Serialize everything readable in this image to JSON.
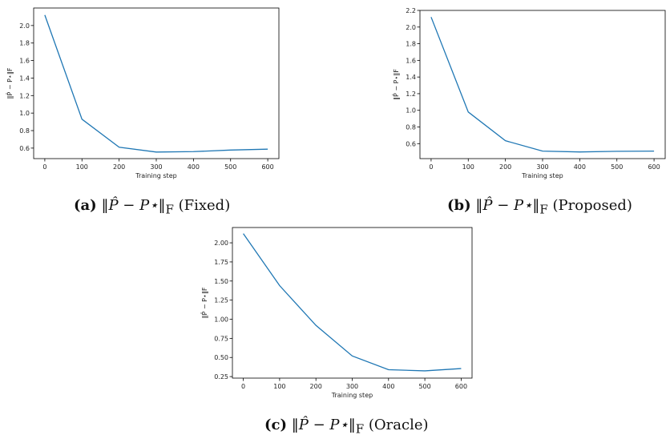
{
  "chart_data": [
    {
      "type": "line",
      "id": "a",
      "title": "",
      "xlabel": "Training step",
      "ylabel": "‖P̂ − P⋆‖F",
      "x": [
        0,
        100,
        200,
        300,
        400,
        500,
        600
      ],
      "xticks": [
        "0",
        "100",
        "200",
        "300",
        "400",
        "500",
        "600"
      ],
      "yticks": [
        "0.6",
        "0.8",
        "1.0",
        "1.2",
        "1.4",
        "1.6",
        "1.8",
        "2.0"
      ],
      "ytick_values": [
        0.6,
        0.8,
        1.0,
        1.2,
        1.4,
        1.6,
        1.8,
        2.0
      ],
      "xlim": [
        -30,
        630
      ],
      "ylim": [
        0.48,
        2.2
      ],
      "series": [
        {
          "values": [
            2.12,
            0.93,
            0.61,
            0.555,
            0.56,
            0.578,
            0.588
          ],
          "color": "#1f77b4"
        }
      ],
      "grid": false,
      "caption": {
        "tag": "(a)",
        "math": "‖P̂ − P⋆‖",
        "sub": "F",
        "label": "(Fixed)"
      }
    },
    {
      "type": "line",
      "id": "b",
      "title": "",
      "xlabel": "Training step",
      "ylabel": "‖P̂ − P⋆‖F",
      "x": [
        0,
        100,
        200,
        300,
        400,
        500,
        600
      ],
      "xticks": [
        "0",
        "100",
        "200",
        "300",
        "400",
        "500",
        "600"
      ],
      "yticks": [
        "0.6",
        "0.8",
        "1.0",
        "1.2",
        "1.4",
        "1.6",
        "1.8",
        "2.0",
        "2.2"
      ],
      "ytick_values": [
        0.6,
        0.8,
        1.0,
        1.2,
        1.4,
        1.6,
        1.8,
        2.0,
        2.2
      ],
      "xlim": [
        -30,
        630
      ],
      "ylim": [
        0.42,
        2.2
      ],
      "series": [
        {
          "values": [
            2.12,
            0.98,
            0.635,
            0.51,
            0.5,
            0.508,
            0.51
          ],
          "color": "#1f77b4"
        }
      ],
      "grid": false,
      "caption": {
        "tag": "(b)",
        "math": "‖P̂ − P⋆‖",
        "sub": "F",
        "label": "(Proposed)"
      }
    },
    {
      "type": "line",
      "id": "c",
      "title": "",
      "xlabel": "Training step",
      "ylabel": "‖P̂ − P⋆‖F",
      "x": [
        0,
        100,
        200,
        300,
        400,
        500,
        600
      ],
      "xticks": [
        "0",
        "100",
        "200",
        "300",
        "400",
        "500",
        "600"
      ],
      "yticks": [
        "0.25",
        "0.50",
        "0.75",
        "1.00",
        "1.25",
        "1.50",
        "1.75",
        "2.00"
      ],
      "ytick_values": [
        0.25,
        0.5,
        0.75,
        1.0,
        1.25,
        1.5,
        1.75,
        2.0
      ],
      "xlim": [
        -30,
        630
      ],
      "ylim": [
        0.23,
        2.2
      ],
      "series": [
        {
          "values": [
            2.12,
            1.44,
            0.92,
            0.52,
            0.34,
            0.325,
            0.355
          ],
          "color": "#1f77b4"
        }
      ],
      "grid": false,
      "caption": {
        "tag": "(c)",
        "math": "‖P̂ − P⋆‖",
        "sub": "F",
        "label": "(Oracle)"
      }
    }
  ]
}
